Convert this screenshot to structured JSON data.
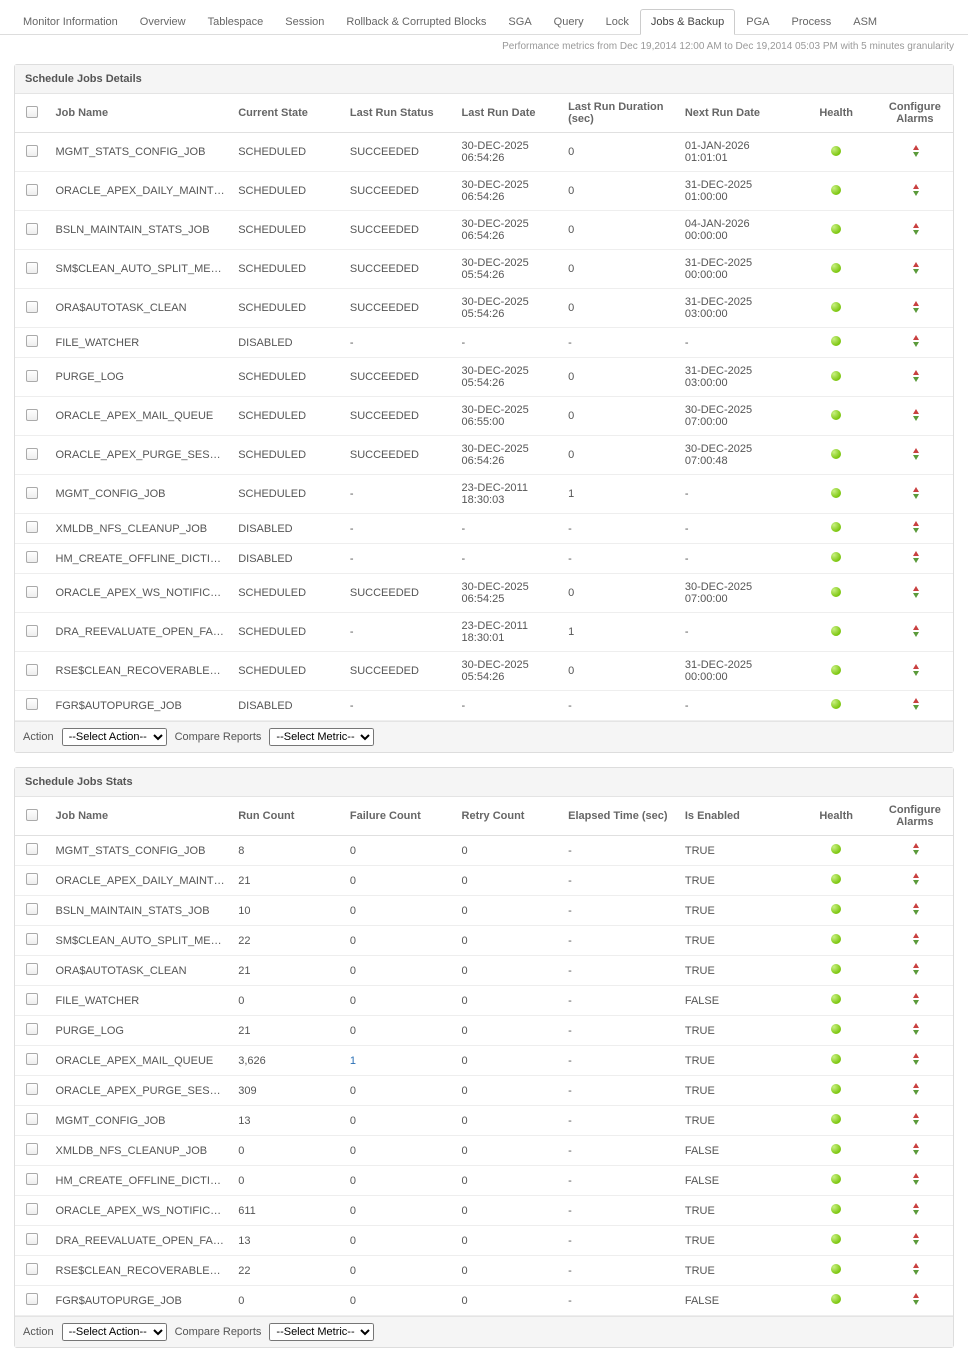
{
  "tabs": [
    "Monitor Information",
    "Overview",
    "Tablespace",
    "Session",
    "Rollback & Corrupted Blocks",
    "SGA",
    "Query",
    "Lock",
    "Jobs & Backup",
    "PGA",
    "Process",
    "ASM"
  ],
  "active_tab_index": 8,
  "subheader": "Performance metrics from Dec 19,2014 12:00 AM to Dec 19,2014 05:03 PM with 5 minutes granularity",
  "colors": {
    "health_green": "#7cc60f",
    "border": "#dddddd",
    "header_bg": "#f5f5f5"
  },
  "details": {
    "title": "Schedule Jobs Details",
    "columns": [
      "",
      "Job Name",
      "Current State",
      "Last Run Status",
      "Last Run Date",
      "Last Run Duration (sec)",
      "Next Run Date",
      "Health",
      "Configure Alarms"
    ],
    "rows": [
      {
        "name": "MGMT_STATS_CONFIG_JOB",
        "state": "SCHEDULED",
        "status": "SUCCEEDED",
        "last": "30-DEC-2025 06:54:26",
        "dur": "0",
        "next": "01-JAN-2026 01:01:01"
      },
      {
        "name": "ORACLE_APEX_DAILY_MAINTENANCE",
        "state": "SCHEDULED",
        "status": "SUCCEEDED",
        "last": "30-DEC-2025 06:54:26",
        "dur": "0",
        "next": "31-DEC-2025 01:00:00"
      },
      {
        "name": "BSLN_MAINTAIN_STATS_JOB",
        "state": "SCHEDULED",
        "status": "SUCCEEDED",
        "last": "30-DEC-2025 06:54:26",
        "dur": "0",
        "next": "04-JAN-2026 00:00:00"
      },
      {
        "name": "SM$CLEAN_AUTO_SPLIT_MERGE",
        "state": "SCHEDULED",
        "status": "SUCCEEDED",
        "last": "30-DEC-2025 05:54:26",
        "dur": "0",
        "next": "31-DEC-2025 00:00:00"
      },
      {
        "name": "ORA$AUTOTASK_CLEAN",
        "state": "SCHEDULED",
        "status": "SUCCEEDED",
        "last": "30-DEC-2025 05:54:26",
        "dur": "0",
        "next": "31-DEC-2025 03:00:00"
      },
      {
        "name": "FILE_WATCHER",
        "state": "DISABLED",
        "status": "-",
        "last": "-",
        "dur": "-",
        "next": "-"
      },
      {
        "name": "PURGE_LOG",
        "state": "SCHEDULED",
        "status": "SUCCEEDED",
        "last": "30-DEC-2025 05:54:26",
        "dur": "0",
        "next": "31-DEC-2025 03:00:00"
      },
      {
        "name": "ORACLE_APEX_MAIL_QUEUE",
        "state": "SCHEDULED",
        "status": "SUCCEEDED",
        "last": "30-DEC-2025 06:55:00",
        "dur": "0",
        "next": "30-DEC-2025 07:00:00"
      },
      {
        "name": "ORACLE_APEX_PURGE_SESSIONS",
        "state": "SCHEDULED",
        "status": "SUCCEEDED",
        "last": "30-DEC-2025 06:54:26",
        "dur": "0",
        "next": "30-DEC-2025 07:00:48"
      },
      {
        "name": "MGMT_CONFIG_JOB",
        "state": "SCHEDULED",
        "status": "-",
        "last": "23-DEC-2011 18:30:03",
        "dur": "1",
        "next": "-"
      },
      {
        "name": "XMLDB_NFS_CLEANUP_JOB",
        "state": "DISABLED",
        "status": "-",
        "last": "-",
        "dur": "-",
        "next": "-"
      },
      {
        "name": "HM_CREATE_OFFLINE_DICTIONARY",
        "state": "DISABLED",
        "status": "-",
        "last": "-",
        "dur": "-",
        "next": "-"
      },
      {
        "name": "ORACLE_APEX_WS_NOTIFICATIONS",
        "state": "SCHEDULED",
        "status": "SUCCEEDED",
        "last": "30-DEC-2025 06:54:25",
        "dur": "0",
        "next": "30-DEC-2025 07:00:00"
      },
      {
        "name": "DRA_REEVALUATE_OPEN_FAILURES",
        "state": "SCHEDULED",
        "status": "-",
        "last": "23-DEC-2011 18:30:01",
        "dur": "1",
        "next": "-"
      },
      {
        "name": "RSE$CLEAN_RECOVERABLE_SCRIPT",
        "state": "SCHEDULED",
        "status": "SUCCEEDED",
        "last": "30-DEC-2025 05:54:26",
        "dur": "0",
        "next": "31-DEC-2025 00:00:00"
      },
      {
        "name": "FGR$AUTOPURGE_JOB",
        "state": "DISABLED",
        "status": "-",
        "last": "-",
        "dur": "-",
        "next": "-"
      }
    ]
  },
  "stats": {
    "title": "Schedule Jobs Stats",
    "columns": [
      "",
      "Job Name",
      "Run Count",
      "Failure Count",
      "Retry Count",
      "Elapsed Time  (sec)",
      "Is Enabled",
      "Health",
      "Configure Alarms"
    ],
    "rows": [
      {
        "name": "MGMT_STATS_CONFIG_JOB",
        "run": "8",
        "fail": "0",
        "retry": "0",
        "elapsed": "-",
        "enabled": "TRUE"
      },
      {
        "name": "ORACLE_APEX_DAILY_MAINTENANCE",
        "run": "21",
        "fail": "0",
        "retry": "0",
        "elapsed": "-",
        "enabled": "TRUE"
      },
      {
        "name": "BSLN_MAINTAIN_STATS_JOB",
        "run": "10",
        "fail": "0",
        "retry": "0",
        "elapsed": "-",
        "enabled": "TRUE"
      },
      {
        "name": "SM$CLEAN_AUTO_SPLIT_MERGE",
        "run": "22",
        "fail": "0",
        "retry": "0",
        "elapsed": "-",
        "enabled": "TRUE"
      },
      {
        "name": "ORA$AUTOTASK_CLEAN",
        "run": "21",
        "fail": "0",
        "retry": "0",
        "elapsed": "-",
        "enabled": "TRUE"
      },
      {
        "name": "FILE_WATCHER",
        "run": "0",
        "fail": "0",
        "retry": "0",
        "elapsed": "-",
        "enabled": "FALSE"
      },
      {
        "name": "PURGE_LOG",
        "run": "21",
        "fail": "0",
        "retry": "0",
        "elapsed": "-",
        "enabled": "TRUE"
      },
      {
        "name": "ORACLE_APEX_MAIL_QUEUE",
        "run": "3,626",
        "fail": "1",
        "retry": "0",
        "elapsed": "-",
        "enabled": "TRUE",
        "fail_link": true
      },
      {
        "name": "ORACLE_APEX_PURGE_SESSIONS",
        "run": "309",
        "fail": "0",
        "retry": "0",
        "elapsed": "-",
        "enabled": "TRUE"
      },
      {
        "name": "MGMT_CONFIG_JOB",
        "run": "13",
        "fail": "0",
        "retry": "0",
        "elapsed": "-",
        "enabled": "TRUE"
      },
      {
        "name": "XMLDB_NFS_CLEANUP_JOB",
        "run": "0",
        "fail": "0",
        "retry": "0",
        "elapsed": "-",
        "enabled": "FALSE"
      },
      {
        "name": "HM_CREATE_OFFLINE_DICTIONARY",
        "run": "0",
        "fail": "0",
        "retry": "0",
        "elapsed": "-",
        "enabled": "FALSE"
      },
      {
        "name": "ORACLE_APEX_WS_NOTIFICATIONS",
        "run": "611",
        "fail": "0",
        "retry": "0",
        "elapsed": "-",
        "enabled": "TRUE"
      },
      {
        "name": "DRA_REEVALUATE_OPEN_FAILURES",
        "run": "13",
        "fail": "0",
        "retry": "0",
        "elapsed": "-",
        "enabled": "TRUE"
      },
      {
        "name": "RSE$CLEAN_RECOVERABLE_SCRIPT",
        "run": "22",
        "fail": "0",
        "retry": "0",
        "elapsed": "-",
        "enabled": "TRUE"
      },
      {
        "name": "FGR$AUTOPURGE_JOB",
        "run": "0",
        "fail": "0",
        "retry": "0",
        "elapsed": "-",
        "enabled": "FALSE"
      }
    ]
  },
  "footer": {
    "action_label": "Action",
    "action_placeholder": "--Select Action--",
    "compare_label": "Compare Reports",
    "compare_placeholder": "--Select Metric--"
  }
}
